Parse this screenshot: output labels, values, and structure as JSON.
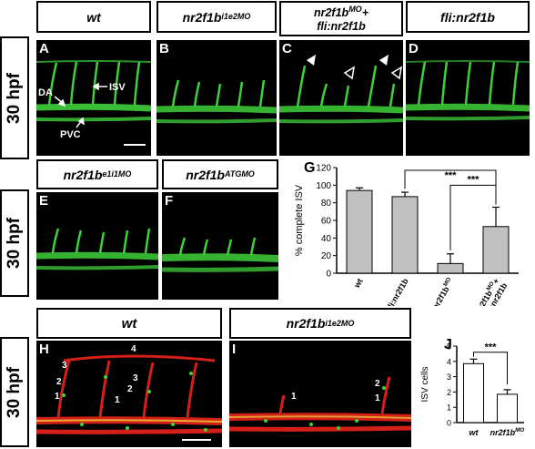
{
  "stage_label": "30 hpf",
  "row1": {
    "headers": [
      "wt",
      "nr2f1b",
      "i1e2MO",
      "nr2f1b",
      "MO",
      "+",
      "fli:nr2f1b",
      "fli:nr2f1b"
    ],
    "panel_labels": [
      "A",
      "B",
      "C",
      "D"
    ],
    "annotations": {
      "da": "DA",
      "isv": "ISV",
      "pvc": "PVC"
    }
  },
  "row2": {
    "headers": [
      "nr2f1b",
      "e1i1MO",
      "nr2f1b",
      "ATGMO"
    ],
    "panel_labels": [
      "E",
      "F"
    ]
  },
  "row3": {
    "headers": [
      "wt",
      "nr2f1b",
      "i1e2MO"
    ],
    "panel_labels": [
      "H",
      "I"
    ],
    "h_numbers": [
      "4",
      "3",
      "3",
      "2",
      "2",
      "1",
      "1"
    ],
    "i_numbers": [
      "2",
      "1",
      "1"
    ]
  },
  "colors": {
    "vessel_green": "#3fd13a",
    "vessel_red": "#d42018",
    "bar_gray": "#c0c0c0"
  },
  "chart_data": [
    {
      "panel": "G",
      "type": "bar",
      "ylabel": "% complete ISV",
      "categories": [
        "wt",
        "fli:nr2f1b",
        "nr2f1b^MO",
        "nr2f1b^MO+ fli:nr2f1b"
      ],
      "values": [
        94,
        87,
        11,
        53
      ],
      "errors": [
        3,
        5,
        11,
        22
      ],
      "ylim": [
        0,
        120
      ],
      "yticks": [
        0,
        20,
        40,
        60,
        80,
        100,
        120
      ],
      "significance": [
        "***",
        "***"
      ]
    },
    {
      "panel": "J",
      "type": "bar",
      "ylabel": "ISV cells",
      "categories": [
        "wt",
        "nr2f1b^MO"
      ],
      "values": [
        3.85,
        1.85
      ],
      "errors": [
        0.3,
        0.3
      ],
      "ylim": [
        0,
        5
      ],
      "yticks": [
        0,
        1,
        2,
        3,
        4,
        5
      ],
      "significance": [
        "***"
      ]
    }
  ]
}
